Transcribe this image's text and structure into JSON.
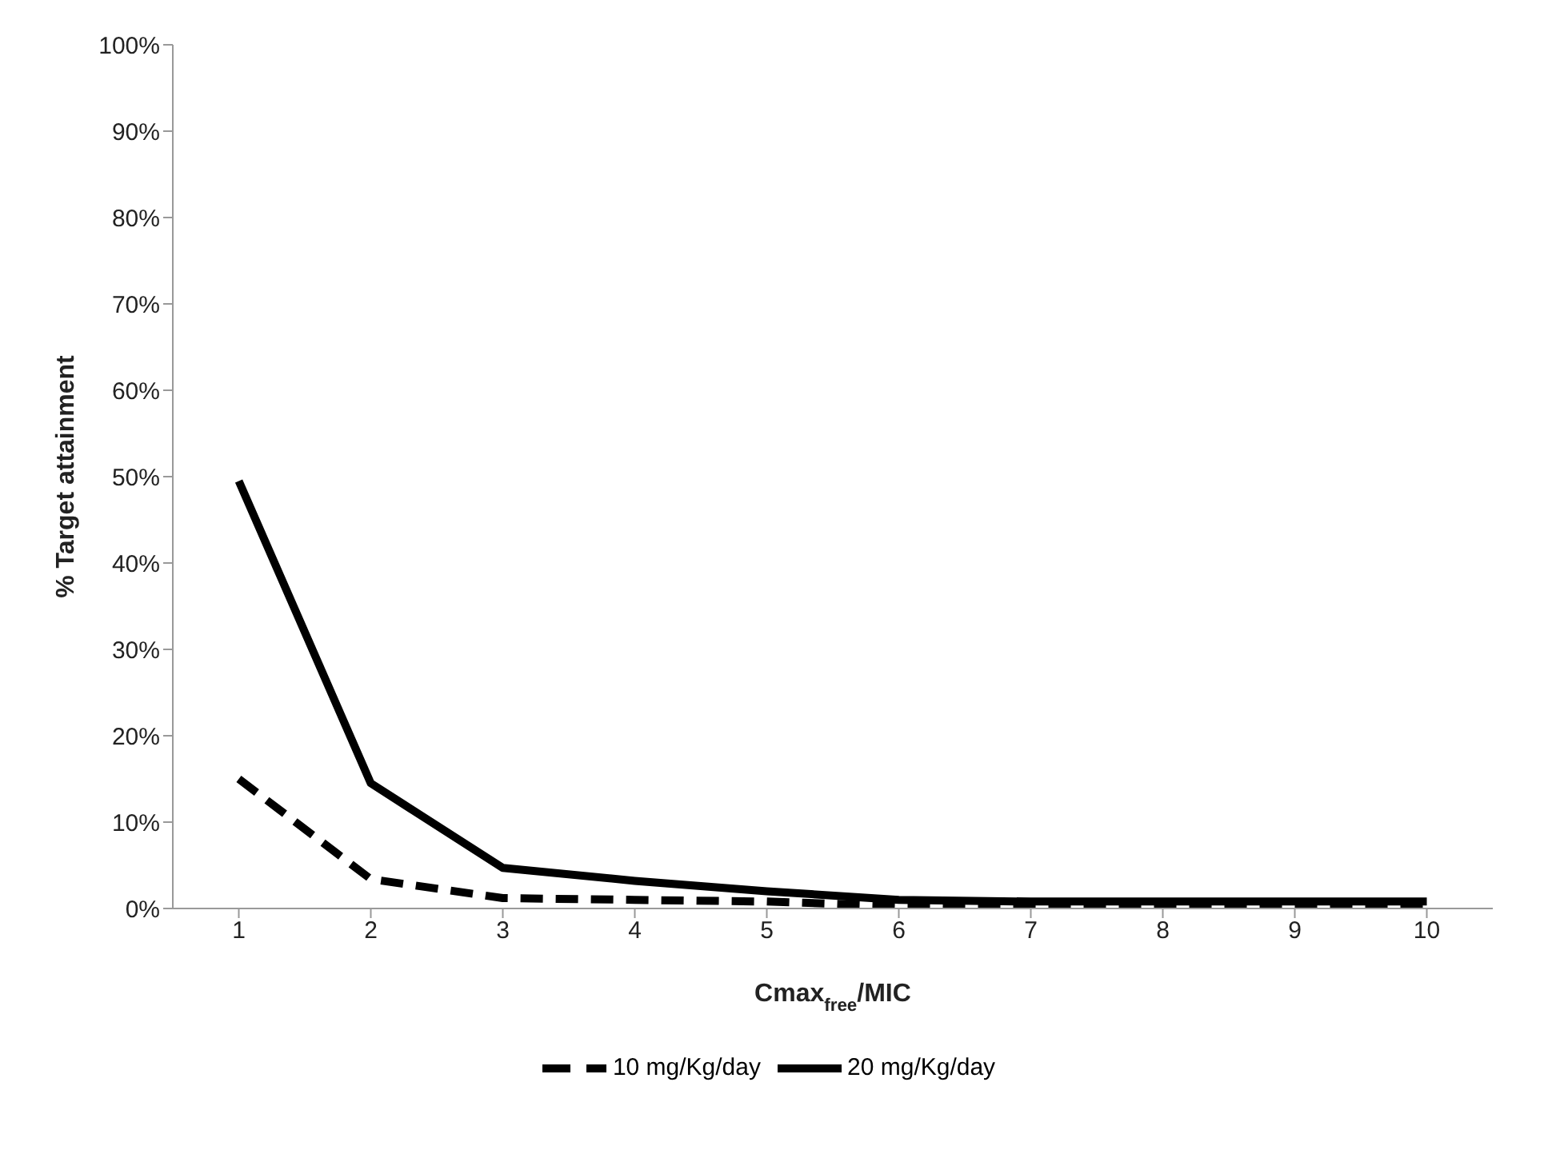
{
  "chart_data": {
    "type": "line",
    "xlabel": "Cmax$_{free}$/MIC",
    "ylabel": "% Target attainment",
    "categories": [
      "1",
      "2",
      "3",
      "4",
      "5",
      "6",
      "7",
      "8",
      "9",
      "10"
    ],
    "series": [
      {
        "name": "10 mg/Kg/day",
        "color": "#000000",
        "line_style": "dashed",
        "values": [
          15,
          3.4,
          1.2,
          1,
          0.8,
          0.3,
          0.2,
          0.2,
          0.2,
          0.2
        ]
      },
      {
        "name": "20 mg/Kg/day",
        "color": "#000000",
        "line_style": "solid",
        "values": [
          49.5,
          14.5,
          4.7,
          3.2,
          2,
          1,
          0.8,
          0.8,
          0.8,
          0.8
        ]
      }
    ],
    "ylim": [
      0,
      100
    ],
    "yticks": [
      {
        "value": 0,
        "label": "0%"
      },
      {
        "value": 10,
        "label": "10%"
      },
      {
        "value": 20,
        "label": "20%"
      },
      {
        "value": 30,
        "label": "30%"
      },
      {
        "value": 40,
        "label": "40%"
      },
      {
        "value": 50,
        "label": "50%"
      },
      {
        "value": 60,
        "label": "60%"
      },
      {
        "value": 70,
        "label": "70%"
      },
      {
        "value": 80,
        "label": "80%"
      },
      {
        "value": 90,
        "label": "90%"
      },
      {
        "value": 100,
        "label": "100%"
      }
    ],
    "grid": false,
    "legend": "bottom",
    "marker": "none"
  }
}
